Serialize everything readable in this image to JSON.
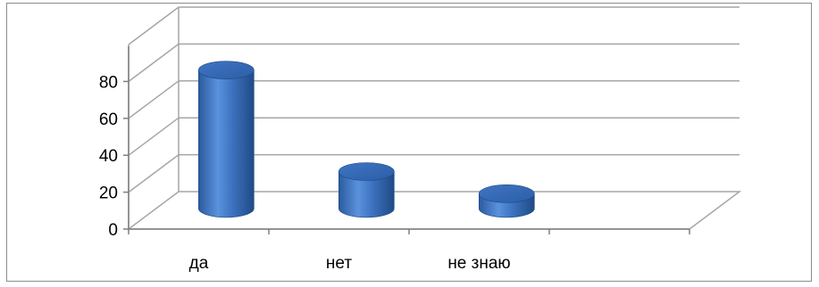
{
  "chart_data": {
    "type": "bar",
    "style": "3d-cylinder",
    "categories": [
      "да",
      "нет",
      "не знаю"
    ],
    "values": [
      75,
      20,
      8
    ],
    "ylim": [
      0,
      100
    ],
    "yticks": [
      0,
      20,
      40,
      60,
      80
    ],
    "grid": true,
    "legend": "none",
    "bar_color": "#3c73c2",
    "gridline_color": "#a6a6a6"
  }
}
